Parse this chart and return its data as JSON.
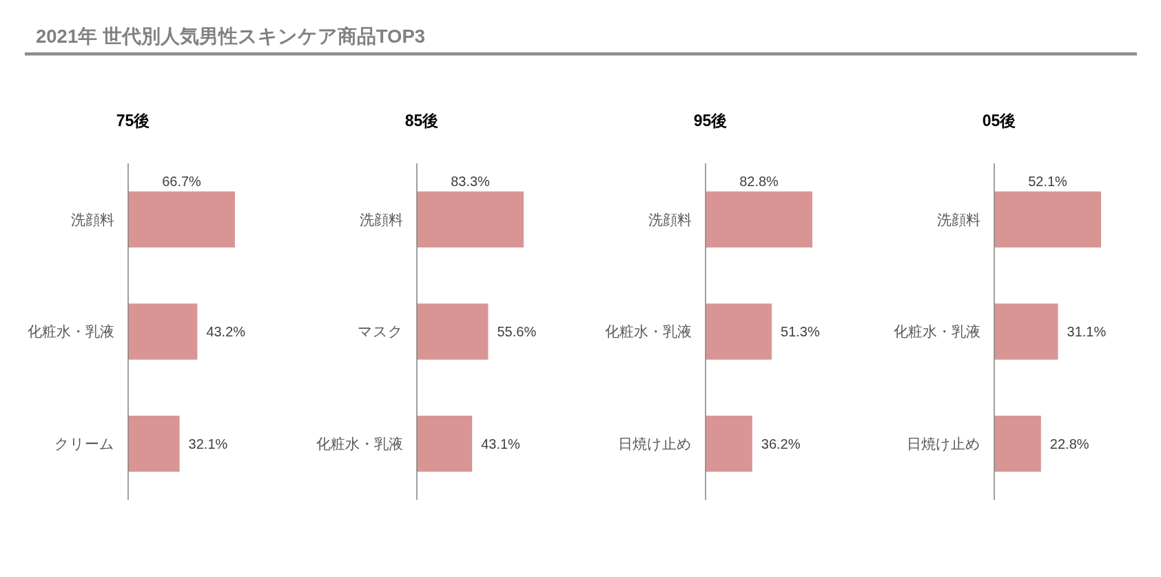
{
  "chart_data": [
    {
      "type": "other",
      "title": "2021年 世代別人気男性スキンケア商品TOP3"
    },
    {
      "type": "bar",
      "orientation": "horizontal",
      "title": "75後",
      "categories": [
        "洗顔料",
        "化粧水・乳液",
        "クリーム"
      ],
      "values": [
        66.7,
        43.2,
        32.1
      ],
      "value_labels": [
        "66.7%",
        "43.2%",
        "32.1%"
      ],
      "color": "#d99594",
      "tick_labels": "y"
    },
    {
      "type": "bar",
      "orientation": "horizontal",
      "title": "85後",
      "categories": [
        "洗顔料",
        "マスク",
        "化粧水・乳液"
      ],
      "values": [
        83.3,
        55.6,
        43.1
      ],
      "value_labels": [
        "83.3%",
        "55.6%",
        "43.1%"
      ],
      "color": "#d99594",
      "tick_labels": "y"
    },
    {
      "type": "bar",
      "orientation": "horizontal",
      "title": "95後",
      "categories": [
        "洗顔料",
        "化粧水・乳液",
        "日焼け止め"
      ],
      "values": [
        82.8,
        51.3,
        36.2
      ],
      "value_labels": [
        "82.8%",
        "51.3%",
        "36.2%"
      ],
      "color": "#d99594",
      "tick_labels": "y"
    },
    {
      "type": "bar",
      "orientation": "horizontal",
      "title": "05後",
      "categories": [
        "洗顔料",
        "化粧水・乳液",
        "日焼け止め"
      ],
      "values": [
        52.1,
        31.1,
        22.8
      ],
      "value_labels": [
        "52.1%",
        "31.1%",
        "22.8%"
      ],
      "color": "#d99594",
      "tick_labels": "y"
    }
  ]
}
